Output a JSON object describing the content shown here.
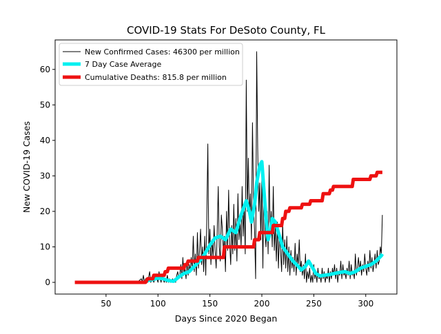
{
  "chart_data": {
    "type": "line",
    "title": "COVID-19 Stats For DeSoto County, FL",
    "xlabel": "Days Since 2020 Began",
    "ylabel": "New COVID-19 Cases",
    "xlim": [
      1,
      330
    ],
    "ylim": [
      -3.3,
      68.3
    ],
    "x_ticks": [
      50,
      100,
      150,
      200,
      250,
      300
    ],
    "y_ticks": [
      0,
      10,
      20,
      30,
      40,
      50,
      60
    ],
    "grid": false,
    "legend_position": "top-left",
    "series": [
      {
        "name": "New Confirmed Cases: 46300 per million",
        "color": "#000000",
        "style": "thin",
        "points": [
          [
            80,
            0
          ],
          [
            84,
            1
          ],
          [
            85,
            0
          ],
          [
            86,
            2
          ],
          [
            87,
            0
          ],
          [
            88,
            1
          ],
          [
            89,
            0
          ],
          [
            90,
            0
          ],
          [
            92,
            3
          ],
          [
            93,
            0
          ],
          [
            95,
            1
          ],
          [
            96,
            0
          ],
          [
            98,
            2
          ],
          [
            100,
            0
          ],
          [
            101,
            3
          ],
          [
            102,
            1
          ],
          [
            103,
            0
          ],
          [
            104,
            2
          ],
          [
            105,
            1
          ],
          [
            106,
            0
          ],
          [
            107,
            1
          ],
          [
            108,
            0
          ],
          [
            109,
            2
          ],
          [
            110,
            0
          ],
          [
            111,
            1
          ],
          [
            112,
            0
          ],
          [
            113,
            0
          ],
          [
            114,
            1
          ],
          [
            115,
            0
          ],
          [
            116,
            1
          ],
          [
            117,
            0
          ],
          [
            118,
            2
          ],
          [
            119,
            3
          ],
          [
            120,
            1
          ],
          [
            121,
            2
          ],
          [
            122,
            5
          ],
          [
            123,
            1
          ],
          [
            124,
            7
          ],
          [
            125,
            2
          ],
          [
            126,
            4
          ],
          [
            127,
            1
          ],
          [
            128,
            6
          ],
          [
            129,
            2
          ],
          [
            130,
            5
          ],
          [
            131,
            3
          ],
          [
            132,
            7
          ],
          [
            133,
            4
          ],
          [
            134,
            13
          ],
          [
            135,
            3
          ],
          [
            136,
            8
          ],
          [
            137,
            2
          ],
          [
            138,
            14
          ],
          [
            139,
            4
          ],
          [
            140,
            9
          ],
          [
            141,
            15
          ],
          [
            142,
            5
          ],
          [
            143,
            10
          ],
          [
            144,
            3
          ],
          [
            145,
            13
          ],
          [
            146,
            2
          ],
          [
            147,
            18
          ],
          [
            148,
            39
          ],
          [
            149,
            8
          ],
          [
            150,
            15
          ],
          [
            151,
            5
          ],
          [
            152,
            12
          ],
          [
            153,
            7
          ],
          [
            154,
            16
          ],
          [
            155,
            9
          ],
          [
            156,
            4
          ],
          [
            157,
            14
          ],
          [
            158,
            27
          ],
          [
            159,
            10
          ],
          [
            160,
            6
          ],
          [
            161,
            19
          ],
          [
            162,
            15
          ],
          [
            163,
            8
          ],
          [
            164,
            13
          ],
          [
            165,
            3
          ],
          [
            166,
            20
          ],
          [
            167,
            9
          ],
          [
            168,
            26
          ],
          [
            169,
            11
          ],
          [
            170,
            5
          ],
          [
            171,
            16
          ],
          [
            172,
            8
          ],
          [
            173,
            22
          ],
          [
            174,
            9
          ],
          [
            175,
            18
          ],
          [
            176,
            6
          ],
          [
            177,
            25
          ],
          [
            178,
            12
          ],
          [
            179,
            17
          ],
          [
            180,
            10
          ],
          [
            181,
            27
          ],
          [
            182,
            13
          ],
          [
            183,
            22
          ],
          [
            184,
            8
          ],
          [
            185,
            57
          ],
          [
            186,
            20
          ],
          [
            187,
            35
          ],
          [
            188,
            18
          ],
          [
            189,
            25
          ],
          [
            190,
            12
          ],
          [
            191,
            45
          ],
          [
            192,
            22
          ],
          [
            193,
            14
          ],
          [
            194,
            1
          ],
          [
            195,
            65
          ],
          [
            196,
            38
          ],
          [
            197,
            20
          ],
          [
            198,
            28
          ],
          [
            199,
            12
          ],
          [
            200,
            30
          ],
          [
            201,
            4
          ],
          [
            202,
            28
          ],
          [
            203,
            14
          ],
          [
            204,
            10
          ],
          [
            205,
            20
          ],
          [
            206,
            8
          ],
          [
            207,
            33
          ],
          [
            208,
            13
          ],
          [
            209,
            20
          ],
          [
            210,
            10
          ],
          [
            211,
            27
          ],
          [
            212,
            9
          ],
          [
            213,
            16
          ],
          [
            214,
            6
          ],
          [
            215,
            17
          ],
          [
            216,
            4
          ],
          [
            217,
            14
          ],
          [
            218,
            9
          ],
          [
            219,
            3
          ],
          [
            220,
            17
          ],
          [
            221,
            5
          ],
          [
            222,
            12
          ],
          [
            223,
            4
          ],
          [
            224,
            13
          ],
          [
            225,
            3
          ],
          [
            226,
            10
          ],
          [
            227,
            2
          ],
          [
            228,
            9
          ],
          [
            229,
            4
          ],
          [
            230,
            7
          ],
          [
            231,
            3
          ],
          [
            232,
            11
          ],
          [
            233,
            2
          ],
          [
            234,
            8
          ],
          [
            235,
            5
          ],
          [
            236,
            12
          ],
          [
            237,
            3
          ],
          [
            238,
            6
          ],
          [
            239,
            2
          ],
          [
            240,
            5
          ],
          [
            241,
            1
          ],
          [
            242,
            8
          ],
          [
            243,
            0
          ],
          [
            244,
            3
          ],
          [
            245,
            1
          ],
          [
            246,
            4
          ],
          [
            247,
            0
          ],
          [
            248,
            2
          ],
          [
            249,
            0
          ],
          [
            250,
            5
          ],
          [
            251,
            1
          ],
          [
            252,
            3
          ],
          [
            253,
            0
          ],
          [
            254,
            4
          ],
          [
            255,
            1
          ],
          [
            256,
            2
          ],
          [
            257,
            0
          ],
          [
            258,
            4
          ],
          [
            259,
            1
          ],
          [
            260,
            3
          ],
          [
            261,
            0
          ],
          [
            262,
            2
          ],
          [
            263,
            1
          ],
          [
            264,
            4
          ],
          [
            265,
            0
          ],
          [
            266,
            3
          ],
          [
            267,
            1
          ],
          [
            268,
            4
          ],
          [
            269,
            2
          ],
          [
            270,
            5
          ],
          [
            271,
            1
          ],
          [
            272,
            4
          ],
          [
            273,
            0
          ],
          [
            274,
            3
          ],
          [
            275,
            2
          ],
          [
            276,
            6
          ],
          [
            277,
            1
          ],
          [
            278,
            5
          ],
          [
            279,
            2
          ],
          [
            280,
            3
          ],
          [
            281,
            1
          ],
          [
            282,
            4
          ],
          [
            283,
            2
          ],
          [
            284,
            6
          ],
          [
            285,
            1
          ],
          [
            286,
            5
          ],
          [
            287,
            2
          ],
          [
            288,
            3
          ],
          [
            289,
            1
          ],
          [
            290,
            8
          ],
          [
            291,
            2
          ],
          [
            292,
            4
          ],
          [
            293,
            7
          ],
          [
            294,
            3
          ],
          [
            295,
            6
          ],
          [
            296,
            2
          ],
          [
            297,
            5
          ],
          [
            298,
            3
          ],
          [
            299,
            8
          ],
          [
            300,
            4
          ],
          [
            301,
            2
          ],
          [
            302,
            6
          ],
          [
            303,
            3
          ],
          [
            304,
            9
          ],
          [
            305,
            4
          ],
          [
            306,
            7
          ],
          [
            307,
            3
          ],
          [
            308,
            5
          ],
          [
            309,
            8
          ],
          [
            310,
            4
          ],
          [
            311,
            9
          ],
          [
            312,
            5
          ],
          [
            313,
            6
          ],
          [
            314,
            10
          ],
          [
            315,
            8
          ],
          [
            316,
            19
          ]
        ]
      },
      {
        "name": "7 Day Case Average",
        "color": "#00f0f0",
        "style": "thick",
        "points": [
          [
            90,
            0.5
          ],
          [
            95,
            0.8
          ],
          [
            100,
            1.2
          ],
          [
            105,
            1.0
          ],
          [
            110,
            0.5
          ],
          [
            115,
            0.3
          ],
          [
            120,
            1.5
          ],
          [
            125,
            2.5
          ],
          [
            130,
            3.0
          ],
          [
            135,
            4.5
          ],
          [
            140,
            6.0
          ],
          [
            145,
            8.0
          ],
          [
            150,
            10.5
          ],
          [
            155,
            12.5
          ],
          [
            160,
            13.0
          ],
          [
            165,
            12.0
          ],
          [
            170,
            15.0
          ],
          [
            175,
            14.0
          ],
          [
            180,
            19.0
          ],
          [
            185,
            23.0
          ],
          [
            188,
            20.0
          ],
          [
            190,
            17.0
          ],
          [
            193,
            22.0
          ],
          [
            195,
            28.0
          ],
          [
            198,
            33.0
          ],
          [
            200,
            34.0
          ],
          [
            202,
            26.0
          ],
          [
            204,
            18.0
          ],
          [
            206,
            12.0
          ],
          [
            208,
            14.0
          ],
          [
            210,
            18.0
          ],
          [
            213,
            17.0
          ],
          [
            216,
            14.0
          ],
          [
            220,
            10.0
          ],
          [
            225,
            8.0
          ],
          [
            230,
            6.0
          ],
          [
            235,
            4.5
          ],
          [
            238,
            3.5
          ],
          [
            242,
            4.5
          ],
          [
            245,
            6.0
          ],
          [
            248,
            4.5
          ],
          [
            252,
            2.5
          ],
          [
            256,
            1.8
          ],
          [
            260,
            2.0
          ],
          [
            265,
            2.2
          ],
          [
            270,
            2.5
          ],
          [
            275,
            2.8
          ],
          [
            280,
            3.0
          ],
          [
            285,
            2.5
          ],
          [
            290,
            3.0
          ],
          [
            295,
            4.0
          ],
          [
            300,
            4.5
          ],
          [
            305,
            5.0
          ],
          [
            310,
            6.0
          ],
          [
            315,
            7.5
          ],
          [
            316,
            8.0
          ]
        ]
      },
      {
        "name": "Cumulative Deaths: 815.8 per million",
        "color": "#ee1111",
        "style": "thick",
        "points": [
          [
            20,
            0
          ],
          [
            88,
            0
          ],
          [
            90,
            1
          ],
          [
            95,
            1
          ],
          [
            96,
            2
          ],
          [
            106,
            2
          ],
          [
            107,
            3
          ],
          [
            109,
            3
          ],
          [
            110,
            4
          ],
          [
            125,
            4
          ],
          [
            126,
            5
          ],
          [
            128,
            5
          ],
          [
            129,
            6
          ],
          [
            138,
            6
          ],
          [
            139,
            7
          ],
          [
            163,
            7
          ],
          [
            164,
            10
          ],
          [
            192,
            10
          ],
          [
            193,
            12
          ],
          [
            197,
            12
          ],
          [
            198,
            14
          ],
          [
            210,
            14
          ],
          [
            211,
            16
          ],
          [
            219,
            16
          ],
          [
            220,
            18
          ],
          [
            222,
            18
          ],
          [
            223,
            20
          ],
          [
            226,
            20
          ],
          [
            227,
            21
          ],
          [
            238,
            21
          ],
          [
            239,
            22
          ],
          [
            246,
            22
          ],
          [
            247,
            23
          ],
          [
            258,
            23
          ],
          [
            259,
            25
          ],
          [
            265,
            25
          ],
          [
            266,
            26
          ],
          [
            268,
            26
          ],
          [
            269,
            27
          ],
          [
            287,
            27
          ],
          [
            288,
            29
          ],
          [
            304,
            29
          ],
          [
            305,
            30
          ],
          [
            310,
            30
          ],
          [
            311,
            31
          ],
          [
            316,
            31
          ]
        ]
      }
    ]
  }
}
